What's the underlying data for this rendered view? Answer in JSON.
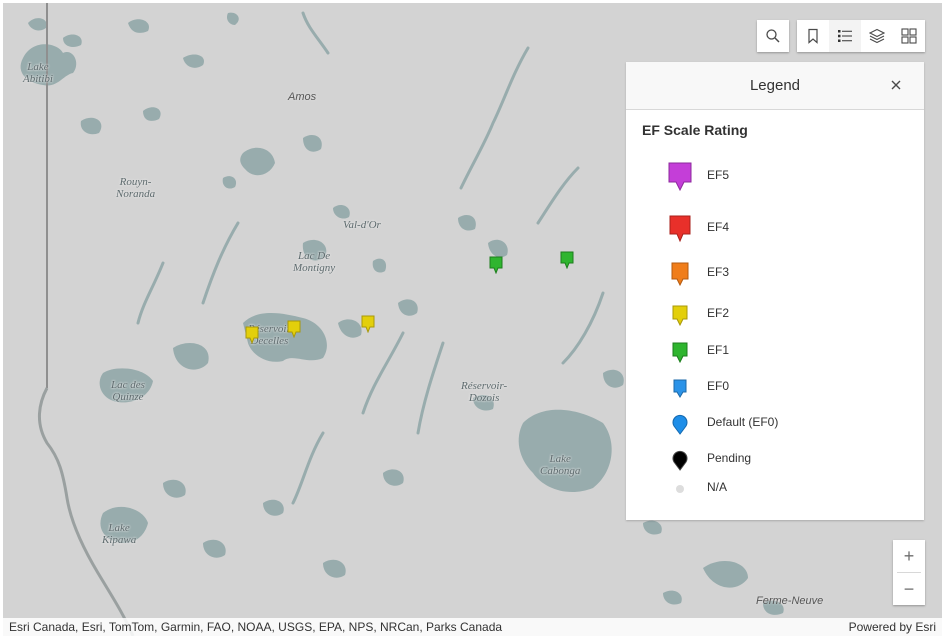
{
  "map": {
    "places": [
      {
        "id": "lake-abitibi",
        "text": "Lake\nAbitibi"
      },
      {
        "id": "amos",
        "text": "Amos"
      },
      {
        "id": "rouyn-noranda",
        "text": "Rouyn-\nNoranda"
      },
      {
        "id": "val-dor",
        "text": "Val-d'Or"
      },
      {
        "id": "lac-de-montigny",
        "text": "Lac De\nMontigny"
      },
      {
        "id": "reservoir-decelles",
        "text": "Réservoir\nDecelles"
      },
      {
        "id": "lac-des-quinze",
        "text": "Lac des\nQuinze"
      },
      {
        "id": "reservoir-dozois",
        "text": "Réservoir-\nDozois"
      },
      {
        "id": "lake-cabonga",
        "text": "Lake\nCabonga"
      },
      {
        "id": "lake-kipawa",
        "text": "Lake\nKipawa"
      },
      {
        "id": "ferme-neuve",
        "text": "Ferme-Neuve"
      }
    ],
    "markers": [
      {
        "rating": "EF1"
      },
      {
        "rating": "EF1"
      },
      {
        "rating": "EF2"
      },
      {
        "rating": "EF2"
      },
      {
        "rating": "EF2"
      }
    ]
  },
  "toolbar": {
    "search_icon": "search-icon",
    "bookmark_icon": "bookmark-icon",
    "legend_icon": "legend-list-icon",
    "layers_icon": "layers-icon",
    "basemap_icon": "basemap-gallery-icon"
  },
  "legend": {
    "title": "Legend",
    "close_icon": "close-icon",
    "layer_title": "EF Scale Rating",
    "items": [
      {
        "label": "EF5",
        "color": "#c43ed8",
        "symbol": "pin"
      },
      {
        "label": "EF4",
        "color": "#e8302a",
        "symbol": "pin"
      },
      {
        "label": "EF3",
        "color": "#f07d1a",
        "symbol": "pin"
      },
      {
        "label": "EF2",
        "color": "#e3cf0b",
        "symbol": "pin"
      },
      {
        "label": "EF1",
        "color": "#2fb52f",
        "symbol": "pin"
      },
      {
        "label": "EF0",
        "color": "#2b93e8",
        "symbol": "pin"
      },
      {
        "label": "Default (EF0)",
        "color": "#1e8ee8",
        "symbol": "drop"
      },
      {
        "label": "Pending",
        "color": "#000000",
        "symbol": "drop"
      },
      {
        "label": "N/A",
        "color": "#dddddd",
        "symbol": "dot"
      }
    ]
  },
  "zoom": {
    "in_label": "+",
    "out_label": "−"
  },
  "attribution": {
    "sources": "Esri Canada, Esri, TomTom, Garmin, FAO, NOAA, USGS, EPA, NPS, NRCan, Parks Canada",
    "powered": "Powered by Esri"
  },
  "colors": {
    "water": "#98acad",
    "land": "#d3d3d3",
    "border": "#8f8f8f"
  }
}
